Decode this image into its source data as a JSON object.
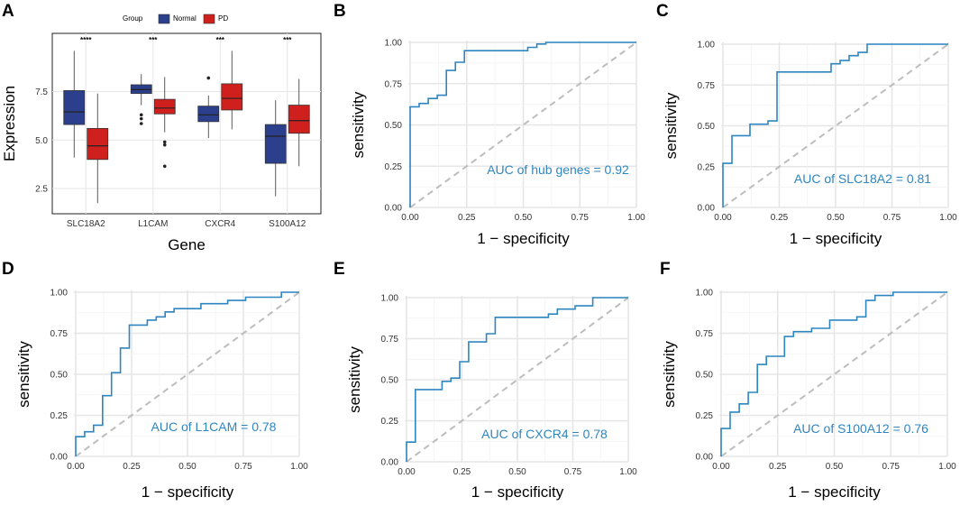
{
  "colors": {
    "normal": "#2b3f8c",
    "pd": "#d0201e",
    "roc": "#2e86c1",
    "diag": "#bdbdbd",
    "grid": "#e6e6e6"
  },
  "chart_data": [
    {
      "panel": "A",
      "type": "box",
      "xlabel": "Gene",
      "ylabel": "Expression",
      "ylim": [
        1.2,
        10.5
      ],
      "yticks": [
        "2.5",
        "5.0",
        "7.5"
      ],
      "legend": {
        "title": "Group",
        "items": [
          "Normal",
          "PD"
        ],
        "placement": "top"
      },
      "categories": [
        "SLC18A2",
        "L1CAM",
        "CXCR4",
        "S100A12"
      ],
      "significance": [
        "****",
        "***",
        "***",
        "***"
      ],
      "series": [
        {
          "name": "Normal",
          "boxes": [
            {
              "min": 4.1,
              "q1": 5.8,
              "median": 6.45,
              "q3": 7.55,
              "max": 9.6,
              "outliers": []
            },
            {
              "min": 6.8,
              "q1": 7.4,
              "median": 7.6,
              "q3": 7.85,
              "max": 8.4,
              "outliers": [
                6.3,
                6.1,
                5.85
              ]
            },
            {
              "min": 5.1,
              "q1": 5.95,
              "median": 6.3,
              "q3": 6.75,
              "max": 7.3,
              "outliers": [
                8.2
              ]
            },
            {
              "min": 2.1,
              "q1": 3.8,
              "median": 5.2,
              "q3": 5.8,
              "max": 7.05,
              "outliers": []
            }
          ]
        },
        {
          "name": "PD",
          "boxes": [
            {
              "min": 1.75,
              "q1": 4.0,
              "median": 4.7,
              "q3": 5.6,
              "max": 7.4,
              "outliers": []
            },
            {
              "min": 5.4,
              "q1": 6.35,
              "median": 6.65,
              "q3": 7.1,
              "max": 8.25,
              "outliers": [
                4.9,
                4.75,
                3.65
              ]
            },
            {
              "min": 5.55,
              "q1": 6.55,
              "median": 7.15,
              "q3": 7.9,
              "max": 9.6,
              "outliers": []
            },
            {
              "min": 3.65,
              "q1": 5.35,
              "median": 6.0,
              "q3": 6.8,
              "max": 8.15,
              "outliers": []
            }
          ]
        }
      ]
    },
    {
      "panel": "B",
      "type": "line",
      "xlabel": "1 − specificity",
      "ylabel": "sensitivity",
      "xlim": [
        0,
        1
      ],
      "ylim": [
        0,
        1
      ],
      "ticks": [
        "0.00",
        "0.25",
        "0.50",
        "0.75",
        "1.00"
      ],
      "auc_label": "AUC of hub genes =  0.92",
      "roc_x": [
        0,
        0,
        0.04,
        0.04,
        0.08,
        0.08,
        0.12,
        0.12,
        0.16,
        0.16,
        0.2,
        0.2,
        0.24,
        0.24,
        0.52,
        0.52,
        0.56,
        0.56,
        0.6,
        0.6,
        1
      ],
      "roc_y": [
        0,
        0.61,
        0.61,
        0.63,
        0.63,
        0.66,
        0.66,
        0.68,
        0.68,
        0.83,
        0.83,
        0.88,
        0.88,
        0.95,
        0.95,
        0.97,
        0.97,
        0.99,
        0.99,
        1,
        1
      ]
    },
    {
      "panel": "C",
      "type": "line",
      "xlabel": "1 − specificity",
      "ylabel": "sensitivity",
      "xlim": [
        0,
        1
      ],
      "ylim": [
        0,
        1
      ],
      "ticks": [
        "0.00",
        "0.25",
        "0.50",
        "0.75",
        "1.00"
      ],
      "auc_label": "AUC of SLC18A2 =  0.81",
      "roc_x": [
        0,
        0,
        0.04,
        0.04,
        0.12,
        0.12,
        0.2,
        0.2,
        0.24,
        0.24,
        0.48,
        0.48,
        0.52,
        0.52,
        0.56,
        0.56,
        0.6,
        0.6,
        0.64,
        0.64,
        1
      ],
      "roc_y": [
        0,
        0.27,
        0.27,
        0.44,
        0.44,
        0.51,
        0.51,
        0.53,
        0.53,
        0.83,
        0.83,
        0.88,
        0.88,
        0.9,
        0.9,
        0.93,
        0.93,
        0.95,
        0.95,
        1,
        1
      ]
    },
    {
      "panel": "D",
      "type": "line",
      "xlabel": "1 − specificity",
      "ylabel": "sensitivity",
      "xlim": [
        0,
        1
      ],
      "ylim": [
        0,
        1
      ],
      "ticks": [
        "0.00",
        "0.25",
        "0.50",
        "0.75",
        "1.00"
      ],
      "auc_label": "AUC of L1CAM =  0.78",
      "roc_x": [
        0,
        0,
        0.04,
        0.04,
        0.08,
        0.08,
        0.12,
        0.12,
        0.16,
        0.16,
        0.2,
        0.2,
        0.24,
        0.24,
        0.32,
        0.32,
        0.36,
        0.36,
        0.4,
        0.4,
        0.44,
        0.44,
        0.48,
        0.48,
        0.56,
        0.56,
        0.68,
        0.68,
        0.76,
        0.76,
        0.8,
        0.8,
        0.92,
        0.92,
        1
      ],
      "roc_y": [
        0,
        0.12,
        0.12,
        0.15,
        0.15,
        0.19,
        0.19,
        0.37,
        0.37,
        0.51,
        0.51,
        0.66,
        0.66,
        0.8,
        0.8,
        0.83,
        0.83,
        0.85,
        0.85,
        0.88,
        0.88,
        0.9,
        0.9,
        0.9,
        0.9,
        0.93,
        0.93,
        0.95,
        0.95,
        0.97,
        0.97,
        0.97,
        0.97,
        1,
        1
      ]
    },
    {
      "panel": "E",
      "type": "line",
      "xlabel": "1 − specificity",
      "ylabel": "sensitivity",
      "xlim": [
        0,
        1
      ],
      "ylim": [
        0,
        1
      ],
      "ticks": [
        "0.00",
        "0.25",
        "0.50",
        "0.75",
        "1.00"
      ],
      "auc_label": "AUC of CXCR4 =  0.78",
      "roc_x": [
        0,
        0,
        0.04,
        0.04,
        0.16,
        0.16,
        0.2,
        0.2,
        0.24,
        0.24,
        0.28,
        0.28,
        0.32,
        0.32,
        0.36,
        0.36,
        0.4,
        0.4,
        0.48,
        0.48,
        0.64,
        0.64,
        0.68,
        0.68,
        0.76,
        0.76,
        0.84,
        0.84,
        1
      ],
      "roc_y": [
        0,
        0.12,
        0.12,
        0.44,
        0.44,
        0.49,
        0.49,
        0.51,
        0.51,
        0.61,
        0.61,
        0.73,
        0.73,
        0.73,
        0.73,
        0.78,
        0.78,
        0.88,
        0.88,
        0.88,
        0.88,
        0.9,
        0.9,
        0.93,
        0.93,
        0.95,
        0.95,
        1,
        1
      ]
    },
    {
      "panel": "F",
      "type": "line",
      "xlabel": "1 − specificity",
      "ylabel": "sensitivity",
      "xlim": [
        0,
        1
      ],
      "ylim": [
        0,
        1
      ],
      "ticks": [
        "0.00",
        "0.25",
        "0.50",
        "0.75",
        "1.00"
      ],
      "auc_label": "AUC of S100A12 =  0.76",
      "roc_x": [
        0,
        0,
        0.04,
        0.04,
        0.08,
        0.08,
        0.12,
        0.12,
        0.16,
        0.16,
        0.2,
        0.2,
        0.24,
        0.24,
        0.28,
        0.28,
        0.32,
        0.32,
        0.4,
        0.4,
        0.48,
        0.48,
        0.6,
        0.6,
        0.64,
        0.64,
        0.68,
        0.68,
        0.76,
        0.76,
        1
      ],
      "roc_y": [
        0,
        0.17,
        0.17,
        0.27,
        0.27,
        0.32,
        0.32,
        0.39,
        0.39,
        0.56,
        0.56,
        0.61,
        0.61,
        0.61,
        0.61,
        0.73,
        0.73,
        0.76,
        0.76,
        0.78,
        0.78,
        0.83,
        0.83,
        0.85,
        0.85,
        0.95,
        0.95,
        0.98,
        0.98,
        1,
        1
      ]
    }
  ]
}
